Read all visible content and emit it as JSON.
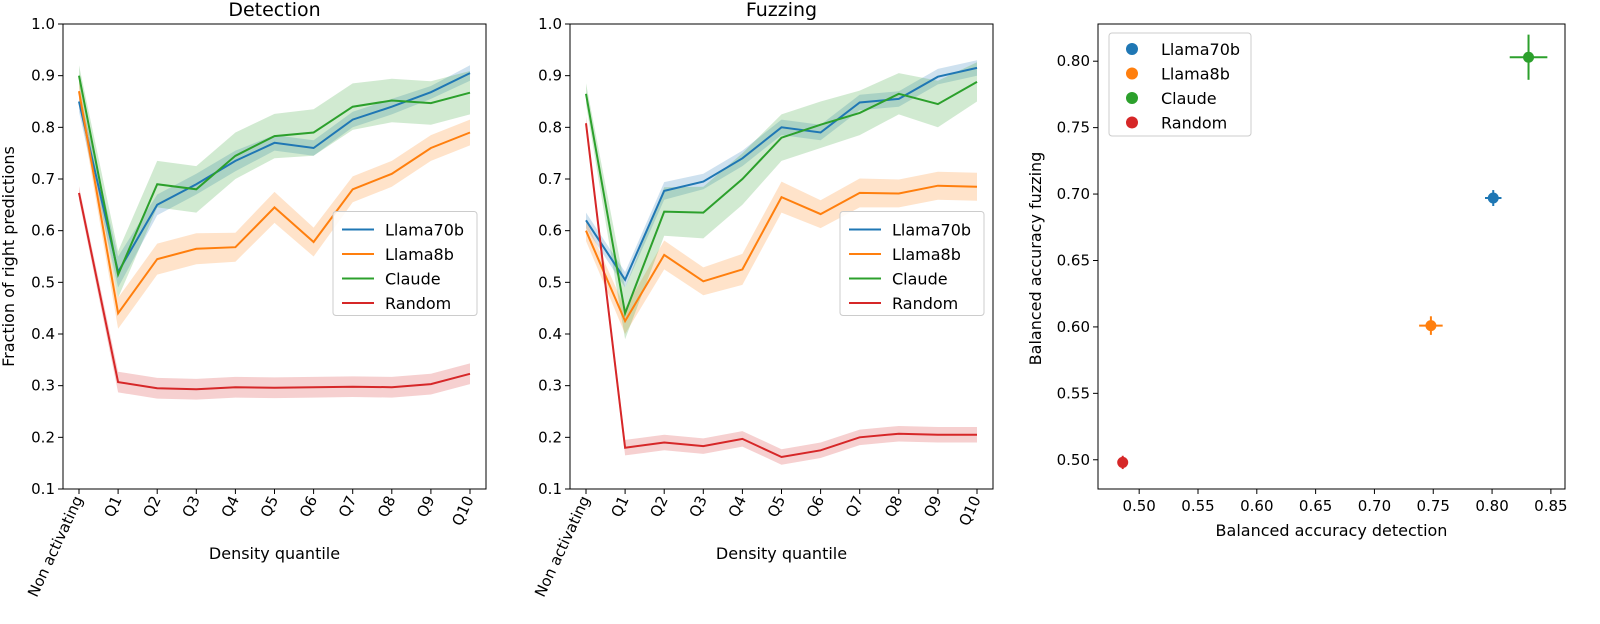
{
  "chart_data": [
    {
      "type": "line",
      "title": "Detection",
      "xlabel": "Density quantile",
      "ylabel": "Fraction of right predictions",
      "categories": [
        "Non activating",
        "Q1",
        "Q2",
        "Q3",
        "Q4",
        "Q5",
        "Q6",
        "Q7",
        "Q8",
        "Q9",
        "Q10"
      ],
      "ylim": [
        0.1,
        1.0
      ],
      "yticks": [
        "0.1",
        "0.2",
        "0.3",
        "0.4",
        "0.5",
        "0.6",
        "0.7",
        "0.8",
        "0.9",
        "1.0"
      ],
      "legend_position": "center-right",
      "series": [
        {
          "name": "Llama70b",
          "color": "#1f77b4",
          "values": [
            0.85,
            0.52,
            0.65,
            0.69,
            0.735,
            0.77,
            0.76,
            0.815,
            0.84,
            0.868,
            0.905
          ],
          "lower": [
            0.83,
            0.49,
            0.63,
            0.67,
            0.715,
            0.755,
            0.745,
            0.8,
            0.825,
            0.855,
            0.89
          ],
          "upper": [
            0.87,
            0.55,
            0.67,
            0.71,
            0.755,
            0.785,
            0.775,
            0.83,
            0.855,
            0.88,
            0.92
          ]
        },
        {
          "name": "Llama8b",
          "color": "#ff7f0e",
          "values": [
            0.87,
            0.44,
            0.545,
            0.565,
            0.568,
            0.645,
            0.578,
            0.68,
            0.71,
            0.76,
            0.79
          ],
          "lower": [
            0.85,
            0.41,
            0.515,
            0.535,
            0.54,
            0.615,
            0.55,
            0.655,
            0.685,
            0.735,
            0.765
          ],
          "upper": [
            0.89,
            0.47,
            0.575,
            0.595,
            0.596,
            0.675,
            0.606,
            0.705,
            0.735,
            0.785,
            0.815
          ]
        },
        {
          "name": "Claude",
          "color": "#2ca02c",
          "values": [
            0.9,
            0.515,
            0.69,
            0.68,
            0.745,
            0.783,
            0.79,
            0.84,
            0.852,
            0.847,
            0.867
          ],
          "lower": [
            0.88,
            0.47,
            0.645,
            0.635,
            0.7,
            0.74,
            0.745,
            0.795,
            0.81,
            0.805,
            0.825
          ],
          "upper": [
            0.92,
            0.56,
            0.735,
            0.725,
            0.79,
            0.826,
            0.835,
            0.885,
            0.894,
            0.889,
            0.909
          ]
        },
        {
          "name": "Random",
          "color": "#d62728",
          "values": [
            0.673,
            0.307,
            0.295,
            0.293,
            0.297,
            0.296,
            0.297,
            0.298,
            0.297,
            0.303,
            0.323
          ],
          "lower": [
            0.66,
            0.287,
            0.275,
            0.273,
            0.277,
            0.276,
            0.277,
            0.278,
            0.277,
            0.283,
            0.303
          ],
          "upper": [
            0.686,
            0.327,
            0.315,
            0.313,
            0.317,
            0.316,
            0.317,
            0.318,
            0.317,
            0.323,
            0.343
          ]
        }
      ]
    },
    {
      "type": "line",
      "title": "Fuzzing",
      "xlabel": "Density quantile",
      "ylabel": "",
      "categories": [
        "Non activating",
        "Q1",
        "Q2",
        "Q3",
        "Q4",
        "Q5",
        "Q6",
        "Q7",
        "Q8",
        "Q9",
        "Q10"
      ],
      "ylim": [
        0.1,
        1.0
      ],
      "yticks": [
        "0.1",
        "0.2",
        "0.3",
        "0.4",
        "0.5",
        "0.6",
        "0.7",
        "0.8",
        "0.9",
        "1.0"
      ],
      "legend_position": "center-right",
      "series": [
        {
          "name": "Llama70b",
          "color": "#1f77b4",
          "values": [
            0.62,
            0.505,
            0.677,
            0.695,
            0.74,
            0.8,
            0.79,
            0.848,
            0.855,
            0.898,
            0.915
          ],
          "lower": [
            0.605,
            0.49,
            0.66,
            0.68,
            0.725,
            0.785,
            0.775,
            0.833,
            0.84,
            0.883,
            0.9
          ],
          "upper": [
            0.635,
            0.52,
            0.694,
            0.71,
            0.755,
            0.815,
            0.805,
            0.863,
            0.87,
            0.913,
            0.93
          ]
        },
        {
          "name": "Llama8b",
          "color": "#ff7f0e",
          "values": [
            0.6,
            0.425,
            0.553,
            0.502,
            0.525,
            0.665,
            0.632,
            0.673,
            0.672,
            0.687,
            0.685
          ],
          "lower": [
            0.58,
            0.4,
            0.525,
            0.475,
            0.495,
            0.635,
            0.605,
            0.645,
            0.645,
            0.66,
            0.658
          ],
          "upper": [
            0.62,
            0.45,
            0.581,
            0.529,
            0.555,
            0.695,
            0.659,
            0.701,
            0.699,
            0.714,
            0.712
          ]
        },
        {
          "name": "Claude",
          "color": "#2ca02c",
          "values": [
            0.865,
            0.44,
            0.637,
            0.635,
            0.7,
            0.78,
            0.805,
            0.828,
            0.865,
            0.845,
            0.888
          ],
          "lower": [
            0.845,
            0.39,
            0.59,
            0.585,
            0.65,
            0.735,
            0.76,
            0.785,
            0.825,
            0.8,
            0.85
          ],
          "upper": [
            0.885,
            0.49,
            0.684,
            0.685,
            0.75,
            0.825,
            0.85,
            0.871,
            0.905,
            0.89,
            0.926
          ]
        },
        {
          "name": "Random",
          "color": "#d62728",
          "values": [
            0.808,
            0.18,
            0.19,
            0.183,
            0.197,
            0.162,
            0.175,
            0.2,
            0.207,
            0.205,
            0.205
          ],
          "lower": [
            0.795,
            0.165,
            0.175,
            0.168,
            0.182,
            0.147,
            0.16,
            0.185,
            0.192,
            0.19,
            0.19
          ],
          "upper": [
            0.821,
            0.195,
            0.205,
            0.198,
            0.212,
            0.177,
            0.19,
            0.215,
            0.222,
            0.22,
            0.22
          ]
        }
      ]
    },
    {
      "type": "scatter",
      "title": "",
      "xlabel": "Balanced accuracy detection",
      "ylabel": "Balanced accuracy fuzzing",
      "xlim": [
        0.465,
        0.862
      ],
      "ylim": [
        0.478,
        0.828
      ],
      "xticks": [
        "0.50",
        "0.55",
        "0.60",
        "0.65",
        "0.70",
        "0.75",
        "0.80",
        "0.85"
      ],
      "yticks": [
        "0.50",
        "0.55",
        "0.60",
        "0.65",
        "0.70",
        "0.75",
        "0.80"
      ],
      "legend_position": "top-left",
      "points": [
        {
          "name": "Llama70b",
          "color": "#1f77b4",
          "x": 0.801,
          "y": 0.697,
          "xerr": 0.007,
          "yerr": 0.006
        },
        {
          "name": "Llama8b",
          "color": "#ff7f0e",
          "x": 0.748,
          "y": 0.601,
          "xerr": 0.01,
          "yerr": 0.007
        },
        {
          "name": "Claude",
          "color": "#2ca02c",
          "x": 0.831,
          "y": 0.803,
          "xerr": 0.016,
          "yerr": 0.017
        },
        {
          "name": "Random",
          "color": "#d62728",
          "x": 0.486,
          "y": 0.498,
          "xerr": 0.004,
          "yerr": 0.005
        }
      ]
    }
  ]
}
